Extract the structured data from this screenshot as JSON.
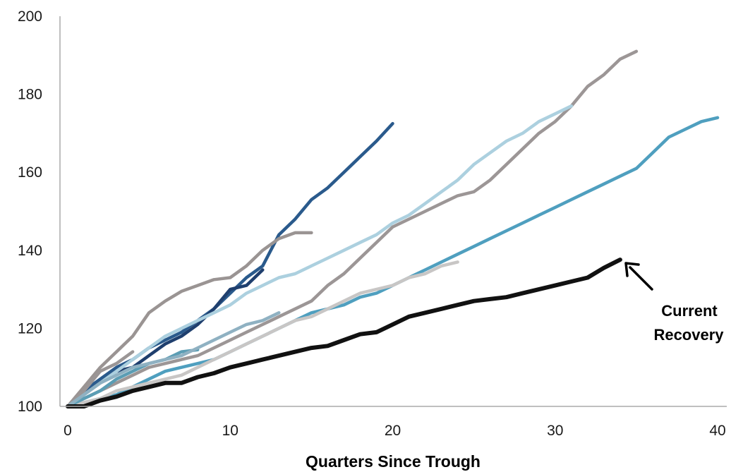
{
  "chart_data": {
    "type": "line",
    "title": "",
    "xlabel": "Quarters Since Trough",
    "ylabel": "",
    "xlim": [
      0,
      40
    ],
    "ylim": [
      100,
      200
    ],
    "x_ticks": [
      "0",
      "10",
      "20",
      "30",
      "40"
    ],
    "y_ticks": [
      "100",
      "120",
      "140",
      "160",
      "180",
      "200"
    ],
    "grid": false,
    "legend": "none",
    "annotation": {
      "lines": [
        "Current",
        "Recovery"
      ],
      "points_to": {
        "x": 34,
        "y": 137.6
      }
    },
    "series": [
      {
        "color": "#2a5a8c",
        "x": [
          0,
          1,
          2,
          3,
          4,
          5,
          6,
          7,
          8,
          9,
          10,
          11,
          12,
          13,
          14,
          15,
          16,
          17,
          18,
          19,
          20
        ],
        "y": [
          100,
          104,
          107,
          110,
          112,
          115,
          117,
          119,
          122,
          125,
          129,
          133,
          136,
          144,
          148,
          153,
          156,
          160,
          164,
          168,
          172.5
        ]
      },
      {
        "color": "#1f3f6e",
        "x": [
          0,
          1,
          2,
          3,
          4,
          5,
          6,
          7,
          8,
          9,
          10,
          11,
          12
        ],
        "y": [
          100,
          103,
          106,
          109,
          110,
          113,
          116,
          118,
          121,
          125,
          130,
          131,
          135
        ]
      },
      {
        "color": "#9a9493",
        "x": [
          0,
          1,
          2,
          3,
          4,
          5,
          6,
          7,
          8,
          9,
          10,
          11,
          12,
          13,
          14,
          15
        ],
        "y": [
          100,
          105,
          110,
          114,
          118,
          124,
          127,
          129.5,
          131,
          132.5,
          133,
          136,
          140,
          143,
          144.5,
          144.5
        ]
      },
      {
        "color": "#9c9696",
        "x": [
          0,
          1,
          2,
          3,
          4,
          5,
          6,
          7,
          8,
          9,
          10,
          11,
          12,
          13,
          14,
          15,
          16,
          17,
          18,
          19,
          20,
          21,
          22,
          23,
          24,
          25,
          26,
          27,
          28,
          29,
          30,
          31,
          32,
          33,
          34,
          35
        ],
        "y": [
          100,
          102,
          104,
          106,
          108,
          110,
          111,
          112,
          113,
          115,
          117,
          119,
          121,
          123,
          125,
          127,
          131,
          134,
          138,
          142,
          146,
          148,
          150,
          152,
          154,
          155,
          158,
          162,
          166,
          170,
          173,
          177,
          182,
          185,
          189,
          191
        ]
      },
      {
        "color": "#acd0df",
        "x": [
          0,
          1,
          2,
          3,
          4,
          5,
          6,
          7,
          8,
          9,
          10,
          11,
          12,
          13,
          14,
          15,
          16,
          17,
          18,
          19,
          20,
          21,
          22,
          23,
          24,
          25,
          26,
          27,
          28,
          29,
          30,
          31
        ],
        "y": [
          100,
          103,
          106,
          109,
          112,
          115,
          118,
          120,
          122,
          124,
          126,
          129,
          131,
          133,
          134,
          136,
          138,
          140,
          142,
          144,
          147,
          149,
          152,
          155,
          158,
          162,
          165,
          168,
          170,
          173,
          175,
          177
        ]
      },
      {
        "color": "#4f9fbf",
        "x": [
          0,
          1,
          2,
          3,
          4,
          5,
          6,
          7,
          8,
          9,
          10,
          11,
          12,
          13,
          14,
          15,
          16,
          17,
          18,
          19,
          20,
          21,
          22,
          23,
          24,
          25,
          26,
          27,
          28,
          29,
          30,
          31,
          32,
          33,
          34,
          35,
          36,
          37,
          38,
          39,
          40
        ],
        "y": [
          100,
          101,
          102,
          103,
          105,
          107,
          109,
          110,
          111,
          112,
          114,
          116,
          118,
          120,
          122,
          124,
          125,
          126,
          128,
          129,
          131,
          133,
          135,
          137,
          139,
          141,
          143,
          145,
          147,
          149,
          151,
          153,
          155,
          157,
          159,
          161,
          165,
          169,
          171,
          173,
          174
        ]
      },
      {
        "color": "#c8c6c5",
        "x": [
          0,
          1,
          2,
          3,
          4,
          5,
          6,
          7,
          8,
          9,
          10,
          11,
          12,
          13,
          14,
          15,
          16,
          17,
          18,
          19,
          20,
          21,
          22,
          23,
          24
        ],
        "y": [
          100,
          101,
          102,
          104,
          105,
          106,
          107,
          108,
          110,
          112,
          114,
          116,
          118,
          120,
          122,
          123,
          125,
          127,
          129,
          130,
          131,
          133,
          134,
          136,
          137
        ]
      },
      {
        "color": "#9b9696",
        "x": [
          0,
          1,
          2,
          3,
          4
        ],
        "y": [
          100,
          104,
          109,
          111,
          114
        ]
      },
      {
        "color": "#5b9db4",
        "x": [
          0,
          1,
          2,
          3,
          4,
          5,
          6,
          7,
          8
        ],
        "y": [
          100,
          102,
          104,
          107,
          109,
          111,
          112,
          114,
          114.5
        ]
      },
      {
        "color": "#8fb1c2",
        "x": [
          0,
          1,
          2,
          3,
          4,
          5,
          6,
          7,
          8,
          9,
          10,
          11,
          12,
          13
        ],
        "y": [
          100,
          103,
          106,
          108,
          110,
          111,
          112,
          113,
          115,
          117,
          119,
          121,
          122,
          124
        ]
      },
      {
        "color": "#111111",
        "x": [
          0,
          1,
          2,
          3,
          4,
          5,
          6,
          7,
          8,
          9,
          10,
          11,
          12,
          13,
          14,
          15,
          16,
          17,
          18,
          19,
          20,
          21,
          22,
          23,
          24,
          25,
          26,
          27,
          28,
          29,
          30,
          31,
          32,
          33,
          34
        ],
        "y": [
          100,
          100,
          101.5,
          102.5,
          104,
          105,
          106,
          106,
          107.5,
          108.5,
          110,
          111,
          112,
          113,
          114,
          115,
          115.5,
          117,
          118.5,
          119,
          121,
          123,
          124,
          125,
          126,
          127,
          127.5,
          128,
          129,
          130,
          131,
          132,
          133,
          135.5,
          137.6
        ]
      }
    ]
  }
}
